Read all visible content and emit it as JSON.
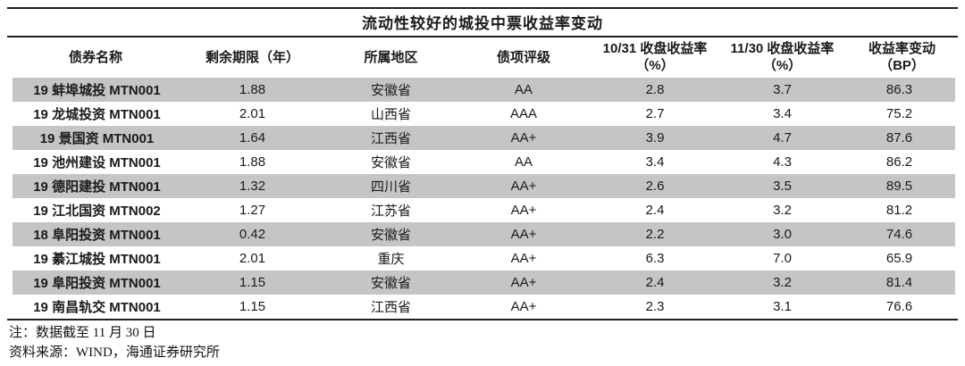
{
  "colors": {
    "stripe": "#c4c5c4",
    "rule": "#1f1f1f",
    "text": "#1a1a1a"
  },
  "table": {
    "title": "流动性较好的城投中票收益率变动",
    "columns": [
      {
        "key": "bond_name",
        "label": "债券名称"
      },
      {
        "key": "remaining_maturity_years",
        "label": "剩余期限（年）"
      },
      {
        "key": "region",
        "label": "所属地区"
      },
      {
        "key": "bond_rating",
        "label": "债项评级"
      },
      {
        "key": "close_yield_1031_pct",
        "label": "10/31 收盘收益率\n（%）"
      },
      {
        "key": "close_yield_1130_pct",
        "label": "11/30 收盘收益率\n（%）"
      },
      {
        "key": "yield_change_bp",
        "label": "收益率变动\n（BP）"
      }
    ],
    "rows": [
      [
        "19 蚌埠城投 MTN001",
        "1.88",
        "安徽省",
        "AA",
        "2.8",
        "3.7",
        "86.3"
      ],
      [
        "19 龙城投资 MTN001",
        "2.01",
        "山西省",
        "AAA",
        "2.7",
        "3.4",
        "75.2"
      ],
      [
        "19 景国资 MTN001",
        "1.64",
        "江西省",
        "AA+",
        "3.9",
        "4.7",
        "87.6"
      ],
      [
        "19 池州建设 MTN001",
        "1.88",
        "安徽省",
        "AA",
        "3.4",
        "4.3",
        "86.2"
      ],
      [
        "19 德阳建投 MTN001",
        "1.32",
        "四川省",
        "AA+",
        "2.6",
        "3.5",
        "89.5"
      ],
      [
        "19 江北国资 MTN002",
        "1.27",
        "江苏省",
        "AA+",
        "2.4",
        "3.2",
        "81.2"
      ],
      [
        "18 阜阳投资 MTN001",
        "0.42",
        "安徽省",
        "AA+",
        "2.2",
        "3.0",
        "74.6"
      ],
      [
        "19 綦江城投 MTN001",
        "2.01",
        "重庆",
        "AA+",
        "6.3",
        "7.0",
        "65.9"
      ],
      [
        "19 阜阳投资 MTN001",
        "1.15",
        "安徽省",
        "AA+",
        "2.4",
        "3.2",
        "81.4"
      ],
      [
        "19 南昌轨交 MTN001",
        "1.15",
        "江西省",
        "AA+",
        "2.3",
        "3.1",
        "76.6"
      ]
    ]
  },
  "notes": {
    "data_cutoff": "注：数据截至 11 月 30 日",
    "source": "资料来源：WIND，海通证券研究所"
  }
}
